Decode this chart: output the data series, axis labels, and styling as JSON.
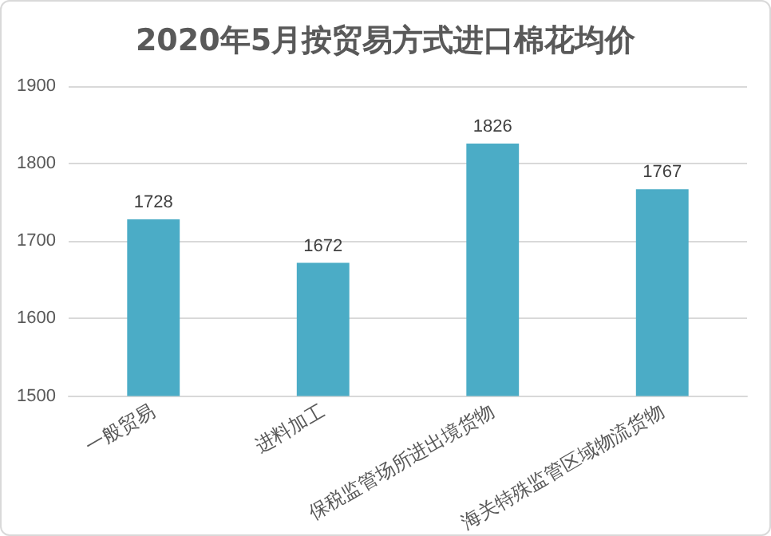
{
  "chart_data": {
    "type": "bar",
    "title": "2020年5月按贸易方式进口棉花均价",
    "categories": [
      "一般贸易",
      "进料加工",
      "保税监管场所进出境货物",
      "海关特殊监管区域物流货物"
    ],
    "values": [
      1728,
      1672,
      1826,
      1767
    ],
    "color": "#4bacc6",
    "ylim": [
      1500,
      1900
    ],
    "yticks": [
      1500,
      1600,
      1700,
      1800,
      1900
    ],
    "grid": "y",
    "data_labels": true
  }
}
